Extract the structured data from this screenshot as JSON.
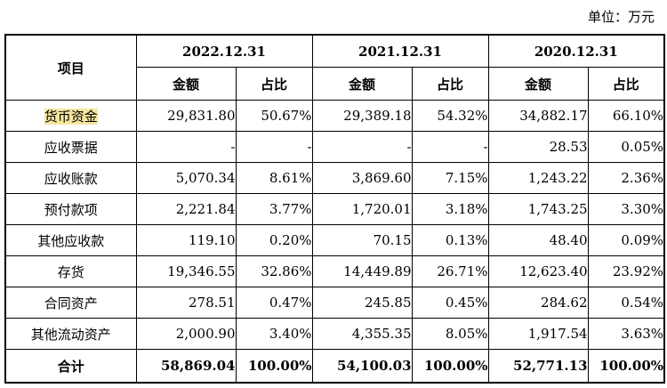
{
  "unit_label": "单位：万元",
  "header": {
    "item_label": "项目",
    "periods": [
      "2022.12.31",
      "2021.12.31",
      "2020.12.31"
    ],
    "amount_label": "金额",
    "ratio_label": "占比"
  },
  "rows": [
    {
      "name": "货币资金",
      "values": [
        "29,831.80",
        "50.67%",
        "29,389.18",
        "54.32%",
        "34,882.17",
        "66.10%"
      ],
      "highlight": true
    },
    {
      "name": "应收票据",
      "values": [
        "-",
        "-",
        "-",
        "-",
        "28.53",
        "0.05%"
      ]
    },
    {
      "name": "应收账款",
      "values": [
        "5,070.34",
        "8.61%",
        "3,869.60",
        "7.15%",
        "1,243.22",
        "2.36%"
      ]
    },
    {
      "name": "预付款项",
      "values": [
        "2,221.84",
        "3.77%",
        "1,720.01",
        "3.18%",
        "1,743.25",
        "3.30%"
      ]
    },
    {
      "name": "其他应收款",
      "values": [
        "119.10",
        "0.20%",
        "70.15",
        "0.13%",
        "48.40",
        "0.09%"
      ]
    },
    {
      "name": "存货",
      "values": [
        "19,346.55",
        "32.86%",
        "14,449.89",
        "26.71%",
        "12,623.40",
        "23.92%"
      ]
    },
    {
      "name": "合同资产",
      "values": [
        "278.51",
        "0.47%",
        "245.85",
        "0.45%",
        "284.62",
        "0.54%"
      ]
    },
    {
      "name": "其他流动资产",
      "values": [
        "2,000.90",
        "3.40%",
        "4,355.35",
        "8.05%",
        "1,917.54",
        "3.63%"
      ]
    }
  ],
  "total": {
    "name": "合计",
    "values": [
      "58,869.04",
      "100.00%",
      "54,100.03",
      "100.00%",
      "52,771.13",
      "100.00%"
    ]
  },
  "colors": {
    "highlight": "#f5e79e"
  }
}
